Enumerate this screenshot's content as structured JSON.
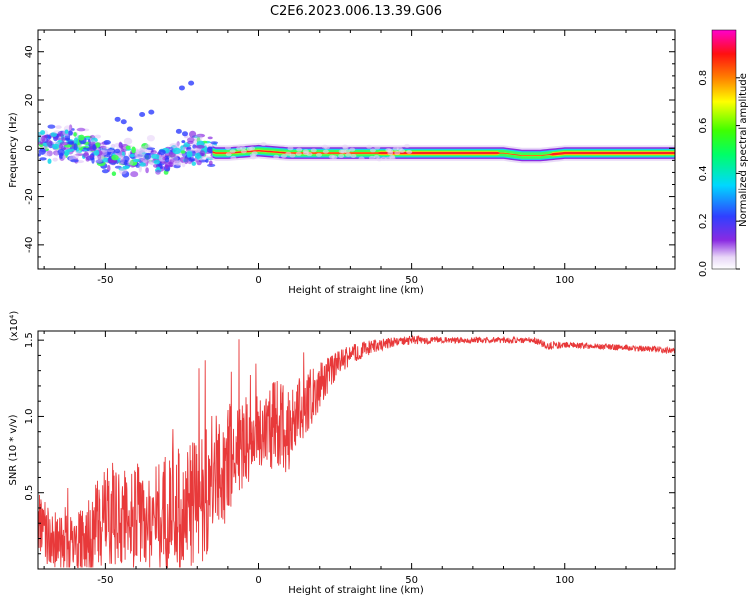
{
  "figure": {
    "title": "C2E6.2023.006.13.39.G06"
  },
  "chart_data": [
    {
      "type": "heatmap",
      "xlabel": "Height of straight line (km)",
      "ylabel": "Frequency (Hz)",
      "xlim": [
        -72,
        136
      ],
      "ylim": [
        -50,
        49
      ],
      "xticks": [
        -50,
        0,
        50,
        100
      ],
      "yticks": [
        -40,
        -20,
        0,
        20,
        40
      ],
      "grid": false,
      "colorbar": {
        "label": "Normalized spectral amplitude",
        "range": [
          0,
          1
        ],
        "ticks": [
          0.0,
          0.2,
          0.4,
          0.6,
          0.8
        ]
      },
      "ridge": [
        [
          -72,
          3
        ],
        [
          -66,
          2
        ],
        [
          -60,
          1
        ],
        [
          -54,
          0
        ],
        [
          -48,
          -3
        ],
        [
          -42,
          -4
        ],
        [
          -36,
          -3
        ],
        [
          -30,
          -4
        ],
        [
          -24,
          -2
        ],
        [
          -18,
          0
        ],
        [
          -14,
          -2
        ],
        [
          -10,
          -2
        ],
        [
          0,
          -1
        ],
        [
          10,
          -2
        ],
        [
          20,
          -2
        ],
        [
          40,
          -2
        ],
        [
          60,
          -2
        ],
        [
          80,
          -2
        ],
        [
          86,
          -3
        ],
        [
          92,
          -3
        ],
        [
          100,
          -2
        ],
        [
          136,
          -2
        ]
      ]
    },
    {
      "type": "line",
      "xlabel": "Height of straight line (km)",
      "ylabel": "SNR (10 * v/v)",
      "y_multiplier": "(x10⁴)",
      "xlim": [
        -72,
        136
      ],
      "ylim": [
        0,
        1.56
      ],
      "xticks": [
        -50,
        0,
        50,
        100
      ],
      "yticks": [
        0.5,
        1.0,
        1.5
      ],
      "ytick_labels": [
        "0.5",
        "1.0",
        "1.5"
      ],
      "series": [
        {
          "color": "#e8393a",
          "x": [
            -72,
            -68,
            -64,
            -60,
            -56,
            -52,
            -48,
            -44,
            -40,
            -36,
            -32,
            -28,
            -24,
            -20,
            -16,
            -12,
            -8,
            -4,
            0,
            4,
            8,
            12,
            16,
            20,
            24,
            28,
            32,
            36,
            40,
            45,
            50,
            60,
            70,
            80,
            90,
            95,
            100,
            110,
            120,
            130,
            136
          ],
          "y": [
            0.3,
            0.2,
            0.15,
            0.15,
            0.2,
            0.3,
            0.35,
            0.35,
            0.35,
            0.3,
            0.35,
            0.4,
            0.4,
            0.45,
            0.55,
            0.65,
            0.75,
            0.85,
            0.9,
            0.95,
            0.9,
            1.0,
            1.1,
            1.2,
            1.3,
            1.38,
            1.42,
            1.45,
            1.47,
            1.49,
            1.5,
            1.5,
            1.5,
            1.5,
            1.5,
            1.46,
            1.47,
            1.46,
            1.45,
            1.44,
            1.43
          ],
          "noise": [
            0.2,
            0.2,
            0.2,
            0.2,
            0.25,
            0.3,
            0.35,
            0.35,
            0.35,
            0.35,
            0.4,
            0.4,
            0.4,
            0.45,
            0.45,
            0.4,
            0.35,
            0.3,
            0.25,
            0.3,
            0.35,
            0.25,
            0.2,
            0.15,
            0.1,
            0.08,
            0.06,
            0.05,
            0.04,
            0.03,
            0.03,
            0.02,
            0.02,
            0.02,
            0.02,
            0.03,
            0.02,
            0.02,
            0.02,
            0.02,
            0.02
          ]
        }
      ]
    }
  ]
}
